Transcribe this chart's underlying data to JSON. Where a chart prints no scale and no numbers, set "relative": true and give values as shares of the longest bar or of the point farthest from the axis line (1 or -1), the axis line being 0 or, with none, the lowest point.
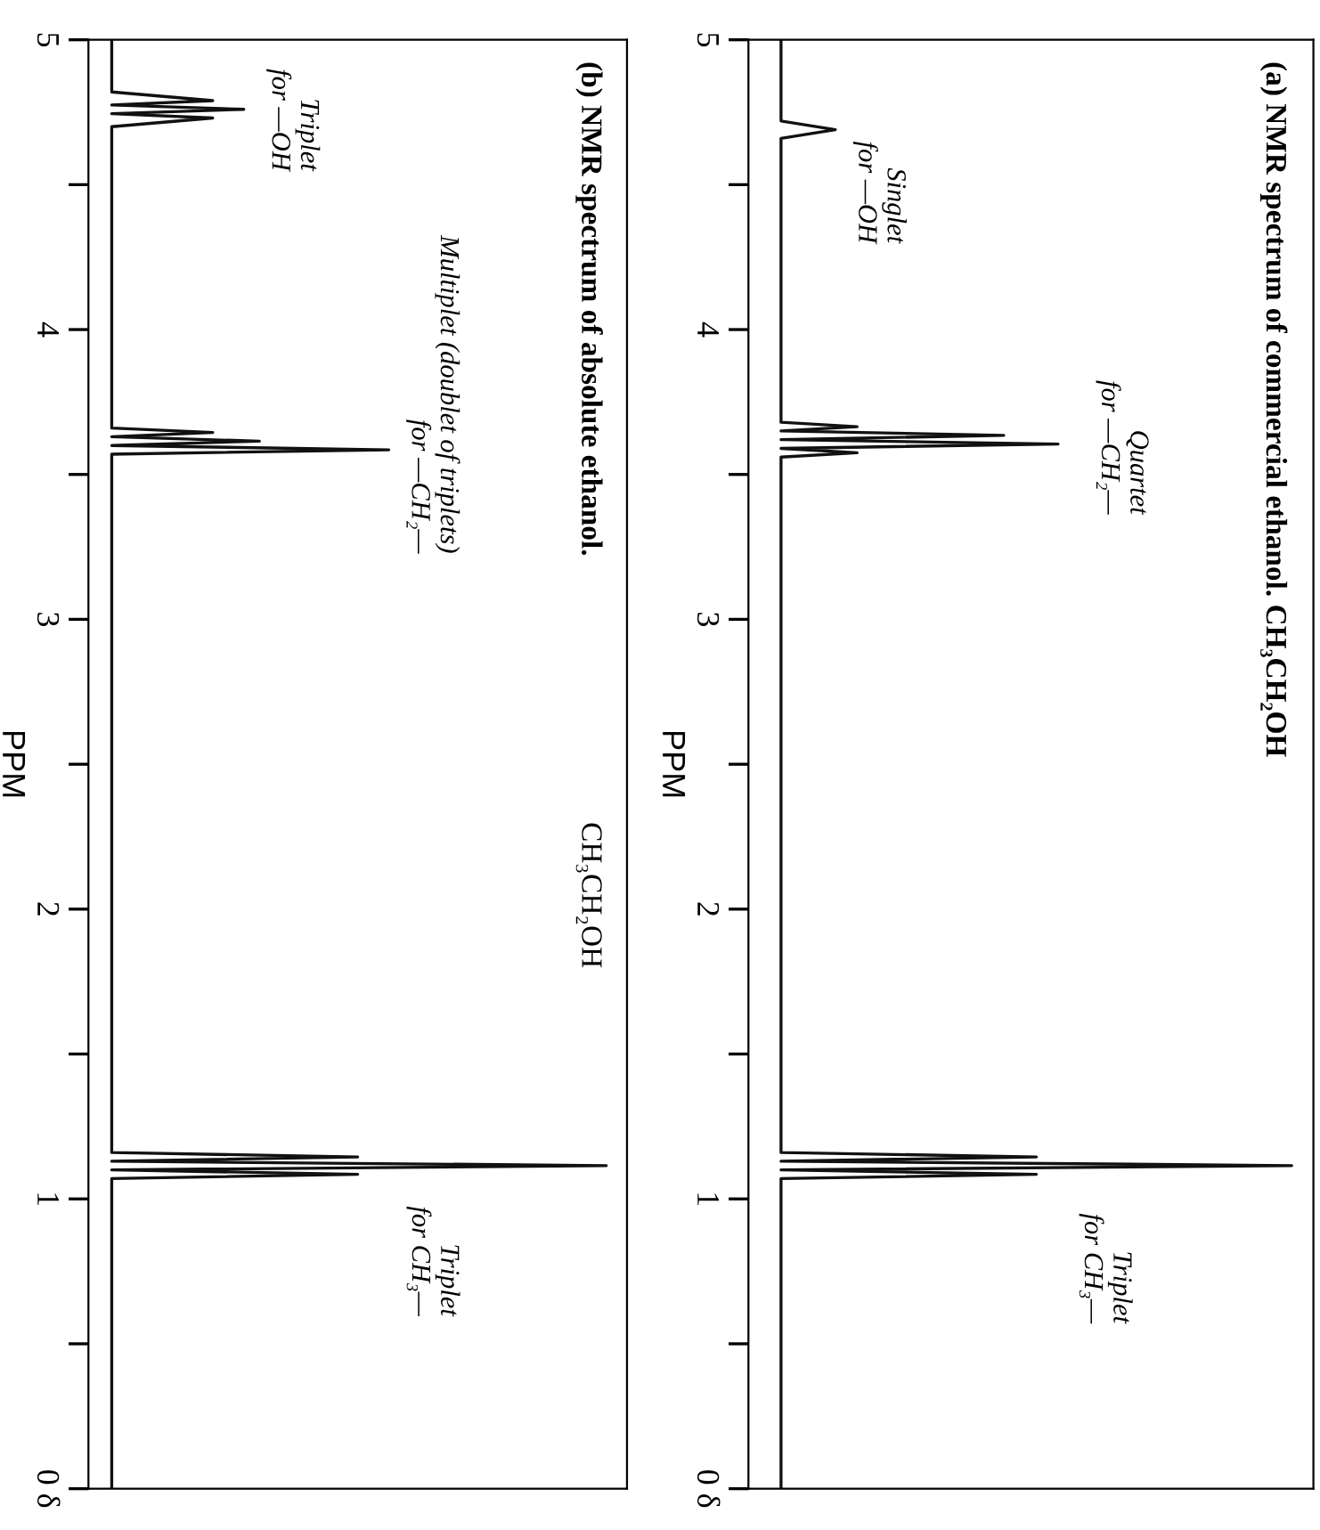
{
  "chart_data": [
    {
      "type": "line",
      "orientation": "horizontal",
      "relative": true,
      "tick_labels": "y",
      "title": "(a) NMR spectrum of commercial ethanol. CH₃CH₂OH",
      "ylabel": "PPM",
      "ylim": [
        0,
        5
      ],
      "yticks": [
        {
          "value": 0,
          "label": "0 δ"
        },
        {
          "value": 0.5,
          "label": null
        },
        1,
        {
          "value": 1.5,
          "label": null
        },
        2,
        {
          "value": 2.5,
          "label": null
        },
        3,
        {
          "value": 3.5,
          "label": null
        },
        4,
        {
          "value": 4.5,
          "label": null
        },
        5
      ],
      "series": [
        {
          "color": "#111111",
          "x": [
            5,
            4.72,
            4.69,
            4.66,
            3.68,
            3.665,
            3.65,
            3.635,
            3.62,
            3.605,
            3.59,
            3.575,
            3.56,
            1.16,
            1.145,
            1.13,
            1.115,
            1.1,
            1.085,
            1.07,
            1.055,
            0
          ],
          "values": [
            0.06,
            0.06,
            0.16,
            0.06,
            0.06,
            0.2,
            0.06,
            0.47,
            0.06,
            0.57,
            0.06,
            0.2,
            0.06,
            0.06,
            0.53,
            0.06,
            1.0,
            0.06,
            0.53,
            0.06,
            0.06,
            0.06
          ]
        }
      ],
      "annotations": [
        "Singlet\nfor —OH",
        "Quartet\nfor —CH₂—",
        "Triplet\nfor CH₃—"
      ]
    },
    {
      "type": "line",
      "orientation": "horizontal",
      "relative": true,
      "tick_labels": "y",
      "title": "(b) NMR spectrum of absolute ethanol.",
      "subtitle": "CH₃CH₂OH",
      "ylabel": "PPM",
      "ylim": [
        0,
        5
      ],
      "yticks": [
        {
          "value": 0,
          "label": "0 δ"
        },
        {
          "value": 0.5,
          "label": null
        },
        1,
        {
          "value": 1.5,
          "label": null
        },
        2,
        {
          "value": 2.5,
          "label": null
        },
        3,
        {
          "value": 3.5,
          "label": null
        },
        4,
        {
          "value": 4.5,
          "label": null
        },
        5
      ],
      "series": [
        {
          "color": "#111111",
          "x": [
            5,
            4.82,
            4.79,
            4.775,
            4.76,
            4.745,
            4.73,
            4.7,
            3.66,
            3.645,
            3.63,
            3.615,
            3.6,
            3.585,
            3.57,
            3.555,
            1.16,
            1.145,
            1.13,
            1.115,
            1.1,
            1.085,
            1.07,
            1.055,
            0
          ],
          "values": [
            0.045,
            0.045,
            0.24,
            0.045,
            0.3,
            0.045,
            0.24,
            0.045,
            0.045,
            0.24,
            0.045,
            0.33,
            0.045,
            0.58,
            0.045,
            0.045,
            0.045,
            0.52,
            0.045,
            1.0,
            0.045,
            0.52,
            0.045,
            0.045,
            0.045
          ]
        }
      ],
      "annotations": [
        "Triplet\nfor —OH",
        "Multiplet (doublet of triplets)\nfor —CH₂—",
        "Triplet\nfor CH₃—"
      ]
    }
  ]
}
